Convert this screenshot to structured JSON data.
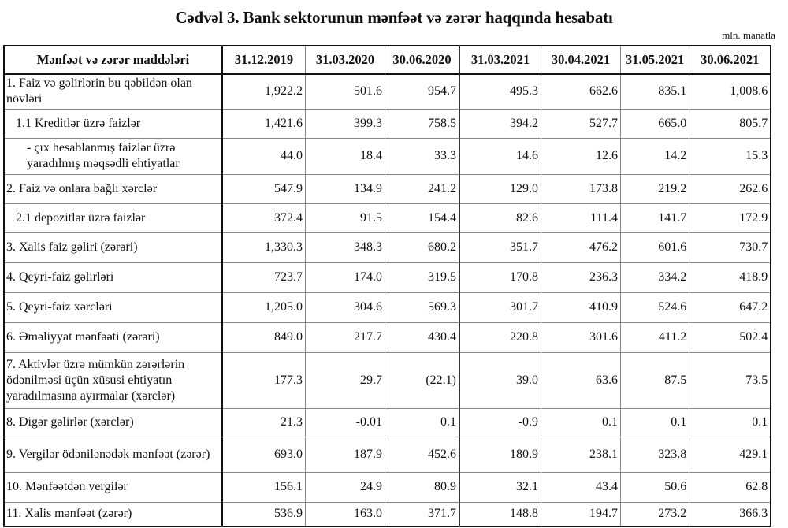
{
  "title": "Cədvəl 3. Bank sektorunun mənfəət və zərər haqqında hesabatı",
  "unit": "mln. manatla",
  "columns": [
    "Mənfəət və zərər maddələri",
    "31.12.2019",
    "31.03.2020",
    "30.06.2020",
    "31.03.2021",
    "30.04.2021",
    "31.05.2021",
    "30.06.2021"
  ],
  "rows": [
    {
      "label": "1. Faiz və gəlirlərin bu qəbildən olan növləri",
      "values": [
        "1,922.2",
        "501.6",
        "954.7",
        "495.3",
        "662.6",
        "835.1",
        "1,008.6"
      ]
    },
    {
      "label": "1.1 Kreditlər üzrə faizlər",
      "values": [
        "1,421.6",
        "399.3",
        "758.5",
        "394.2",
        "527.7",
        "665.0",
        "805.7"
      ]
    },
    {
      "label": "   -  çıx hesablanmış faizlər üzrə yaradılmış məqsədli ehtiyatlar",
      "values": [
        "44.0",
        "18.4",
        "33.3",
        "14.6",
        "12.6",
        "14.2",
        "15.3"
      ]
    },
    {
      "label": "2. Faiz və onlara bağlı xərclər",
      "values": [
        "547.9",
        "134.9",
        "241.2",
        "129.0",
        "173.8",
        "219.2",
        "262.6"
      ]
    },
    {
      "label": "2.1 depozitlər üzrə faizlər",
      "values": [
        "372.4",
        "91.5",
        "154.4",
        "82.6",
        "111.4",
        "141.7",
        "172.9"
      ]
    },
    {
      "label": "3. Xalis faiz gəliri (zərəri)",
      "values": [
        "1,330.3",
        "348.3",
        "680.2",
        "351.7",
        "476.2",
        "601.6",
        "730.7"
      ]
    },
    {
      "label": "4. Qeyri-faiz gəlirləri",
      "values": [
        "723.7",
        "174.0",
        "319.5",
        "170.8",
        "236.3",
        "334.2",
        "418.9"
      ]
    },
    {
      "label": "5. Qeyri-faiz xərcləri",
      "values": [
        "1,205.0",
        "304.6",
        "569.3",
        "301.7",
        "410.9",
        "524.6",
        "647.2"
      ]
    },
    {
      "label": "6. Əməliyyat mənfəəti (zərəri)",
      "values": [
        "849.0",
        "217.7",
        "430.4",
        "220.8",
        "301.6",
        "411.2",
        "502.4"
      ]
    },
    {
      "label": "7. Aktivlər üzrə mümkün zərərlərin ödənilməsi üçün xüsusi ehtiyatın yaradılmasına ayırmalar (xərclər)",
      "values": [
        "177.3",
        "29.7",
        "(22.1)",
        "39.0",
        "63.6",
        "87.5",
        "73.5"
      ]
    },
    {
      "label": "8. Digər gəlirlər (xərclər)",
      "values": [
        "21.3",
        "-0.01",
        "0.1",
        "-0.9",
        "0.1",
        "0.1",
        "0.1"
      ]
    },
    {
      "label": "9. Vergilər ödənilənədək mənfəət (zərər)",
      "values": [
        "693.0",
        "187.9",
        "452.6",
        "180.9",
        "238.1",
        "323.8",
        "429.1"
      ]
    },
    {
      "label": "10. Mənfəətdən vergilər",
      "values": [
        "156.1",
        "24.9",
        "80.9",
        "32.1",
        "43.4",
        "50.6",
        "62.8"
      ]
    },
    {
      "label": "11. Xalis mənfəət (zərər)",
      "values": [
        "536.9",
        "163.0",
        "371.7",
        "148.8",
        "194.7",
        "273.2",
        "366.3"
      ]
    }
  ]
}
